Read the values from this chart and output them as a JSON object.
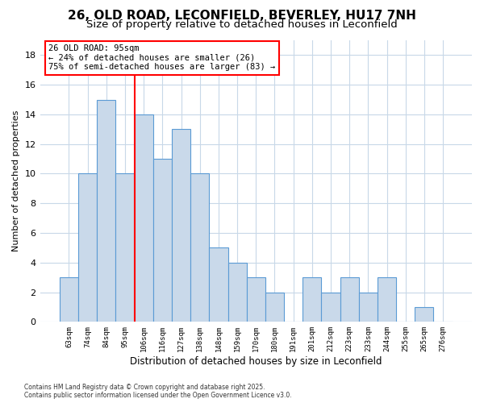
{
  "title": "26, OLD ROAD, LECONFIELD, BEVERLEY, HU17 7NH",
  "subtitle": "Size of property relative to detached houses in Leconfield",
  "xlabel": "Distribution of detached houses by size in Leconfield",
  "ylabel": "Number of detached properties",
  "categories": [
    "63sqm",
    "74sqm",
    "84sqm",
    "95sqm",
    "106sqm",
    "116sqm",
    "127sqm",
    "138sqm",
    "148sqm",
    "159sqm",
    "170sqm",
    "180sqm",
    "191sqm",
    "201sqm",
    "212sqm",
    "223sqm",
    "233sqm",
    "244sqm",
    "255sqm",
    "265sqm",
    "276sqm"
  ],
  "values": [
    3,
    10,
    15,
    10,
    14,
    11,
    13,
    10,
    5,
    4,
    3,
    2,
    0,
    3,
    2,
    3,
    2,
    3,
    0,
    1,
    0
  ],
  "bar_color": "#c9d9ea",
  "bar_edge_color": "#5b9bd5",
  "red_line_index": 3,
  "annotation_title": "26 OLD ROAD: 95sqm",
  "annotation_line1": "← 24% of detached houses are smaller (26)",
  "annotation_line2": "75% of semi-detached houses are larger (83) →",
  "ylim": [
    0,
    19
  ],
  "yticks": [
    0,
    2,
    4,
    6,
    8,
    10,
    12,
    14,
    16,
    18
  ],
  "footnote1": "Contains HM Land Registry data © Crown copyright and database right 2025.",
  "footnote2": "Contains public sector information licensed under the Open Government Licence v3.0.",
  "background_color": "#ffffff",
  "plot_bg_color": "#ffffff",
  "grid_color": "#c8d8e8",
  "title_fontsize": 11,
  "subtitle_fontsize": 9.5
}
